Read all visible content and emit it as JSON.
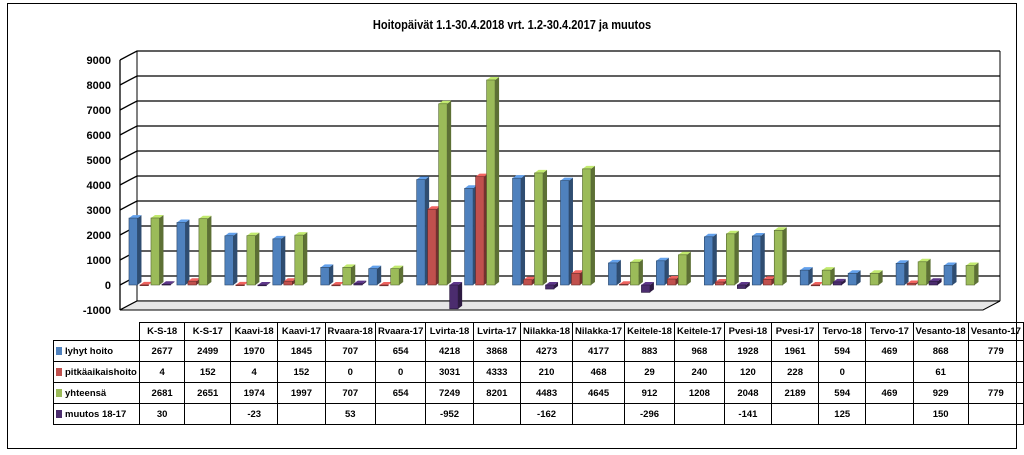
{
  "chart_data": {
    "type": "bar",
    "title": "Hoitopäivät 1.1-30.4.2018 vrt. 1.2-30.4.2017 ja muutos",
    "categories": [
      "K-S-18",
      "K-S-17",
      "Kaavi-18",
      "Kaavi-17",
      "Rvaara-18",
      "Rvaara-17",
      "Lvirta-18",
      "Lvirta-17",
      "Nilakka-18",
      "Nilakka-17",
      "Keitele-18",
      "Keitele-17",
      "Pvesi-18",
      "Pvesi-17",
      "Tervo-18",
      "Tervo-17",
      "Vesanto-18",
      "Vesanto-17"
    ],
    "ylim": [
      -1000,
      9000
    ],
    "yticks": [
      "-1000",
      "0",
      "1000",
      "2000",
      "3000",
      "4000",
      "5000",
      "6000",
      "7000",
      "8000",
      "9000"
    ],
    "grid": true,
    "legend": "table",
    "series": [
      {
        "name": "lyhyt hoito",
        "color": "#4F81BD",
        "values": [
          2677,
          2499,
          1970,
          1845,
          707,
          654,
          4218,
          3868,
          4273,
          4177,
          883,
          968,
          1928,
          1961,
          594,
          469,
          868,
          779
        ],
        "labels": [
          "2677",
          "2499",
          "1970",
          "1845",
          "707",
          "654",
          "4218",
          "3868",
          "4273",
          "4177",
          "883",
          "968",
          "1928",
          "1961",
          "594",
          "469",
          "868",
          "779"
        ]
      },
      {
        "name": "pitkäaikaishoito",
        "color": "#C0504D",
        "values": [
          4,
          152,
          4,
          152,
          0,
          0,
          3031,
          4333,
          210,
          468,
          29,
          240,
          120,
          228,
          0,
          null,
          61,
          null
        ],
        "labels": [
          "4",
          "152",
          "4",
          "152",
          "0",
          "0",
          "3031",
          "4333",
          "210",
          "468",
          "29",
          "240",
          "120",
          "228",
          "0",
          "",
          "61",
          ""
        ]
      },
      {
        "name": "yhteensä",
        "color": "#9BBB59",
        "values": [
          2681,
          2651,
          1974,
          1997,
          707,
          654,
          7249,
          8201,
          4483,
          4645,
          912,
          1208,
          2048,
          2189,
          594,
          469,
          929,
          779
        ],
        "labels": [
          "2681",
          "2651",
          "1974",
          "1997",
          "707",
          "654",
          "7249",
          "8201",
          "4483",
          "4645",
          "912",
          "1208",
          "2048",
          "2189",
          "594",
          "469",
          "929",
          "779"
        ]
      },
      {
        "name": "muutos 18-17",
        "color": "#4B2C6E",
        "values": [
          30,
          null,
          -23,
          null,
          53,
          null,
          -952,
          null,
          -162,
          null,
          -296,
          null,
          -141,
          null,
          125,
          null,
          150,
          null
        ],
        "labels": [
          "30",
          "",
          "-23",
          "",
          "53",
          "",
          "-952",
          "",
          "-162",
          "",
          "-296",
          "",
          "-141",
          "",
          "125",
          "",
          "150",
          ""
        ]
      }
    ]
  }
}
